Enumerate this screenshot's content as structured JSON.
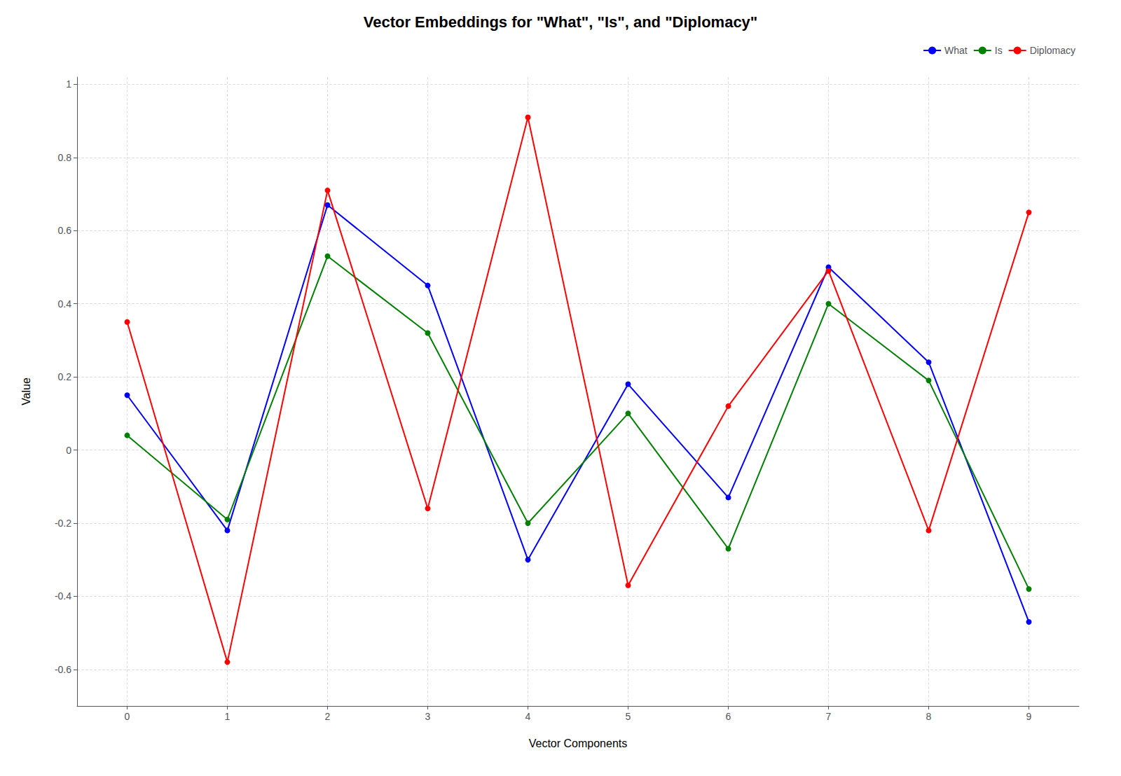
{
  "chart_data": {
    "type": "line",
    "title": "Vector Embeddings for \"What\", \"Is\", and \"Diplomacy\"",
    "xlabel": "Vector Components",
    "ylabel": "Value",
    "x": [
      0,
      1,
      2,
      3,
      4,
      5,
      6,
      7,
      8,
      9
    ],
    "series": [
      {
        "name": "What",
        "color": "#0000ff",
        "marker": "circle",
        "values": [
          0.15,
          -0.22,
          0.67,
          0.45,
          -0.3,
          0.18,
          -0.13,
          0.5,
          0.24,
          -0.47
        ]
      },
      {
        "name": "Is",
        "color": "#008000",
        "marker": "circle",
        "values": [
          0.04,
          -0.19,
          0.53,
          0.32,
          -0.2,
          0.1,
          -0.27,
          0.4,
          0.19,
          -0.38
        ]
      },
      {
        "name": "Diplomacy",
        "color": "#ff0000",
        "marker": "circle",
        "values": [
          0.35,
          -0.58,
          0.71,
          -0.16,
          0.91,
          -0.37,
          0.12,
          0.49,
          -0.22,
          0.65
        ]
      }
    ],
    "xlim": [
      -0.5,
      9.5
    ],
    "xticks": [
      0,
      1,
      2,
      3,
      4,
      5,
      6,
      7,
      8,
      9
    ],
    "ylim": [
      -0.7,
      1.02
    ],
    "yticks": [
      -0.6,
      -0.4,
      -0.2,
      0,
      0.2,
      0.4,
      0.6,
      0.8,
      1
    ],
    "grid": true,
    "legend": "upper right"
  }
}
